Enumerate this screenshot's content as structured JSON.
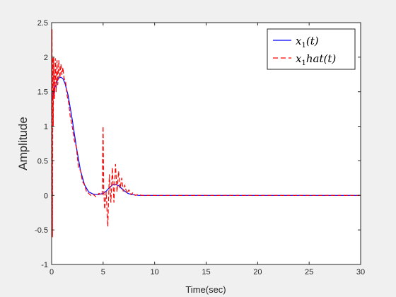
{
  "chart_data": {
    "type": "line",
    "title": "",
    "xlabel": "Time(sec)",
    "ylabel": "Amplitude",
    "xlim": [
      0,
      30
    ],
    "ylim": [
      -1,
      2.5
    ],
    "xticks": [
      0,
      5,
      10,
      15,
      20,
      25,
      30
    ],
    "yticks": [
      -1,
      -0.5,
      0,
      0.5,
      1,
      1.5,
      2,
      2.5
    ],
    "xtick_labels": [
      "0",
      "5",
      "10",
      "15",
      "20",
      "25",
      "30"
    ],
    "ytick_labels": [
      "-1",
      "-0.5",
      "0",
      "0.5",
      "1",
      "1.5",
      "2",
      "2.5"
    ],
    "grid": false,
    "legend_position": "top-right",
    "series": [
      {
        "name": "x_1(t)",
        "legend_base": "x",
        "legend_sub": "1",
        "legend_rest": "(t)",
        "color": "#0000ff",
        "style": "solid",
        "x": [
          0,
          0.15,
          0.3,
          0.5,
          0.7,
          0.9,
          1.1,
          1.3,
          1.6,
          2.0,
          2.4,
          2.8,
          3.2,
          3.6,
          4.0,
          4.5,
          5.0,
          5.3,
          5.6,
          5.9,
          6.2,
          6.5,
          6.8,
          7.1,
          7.4,
          7.8,
          8.5,
          10,
          15,
          20,
          25,
          30
        ],
        "y": [
          1.35,
          1.45,
          1.55,
          1.64,
          1.7,
          1.71,
          1.69,
          1.62,
          1.45,
          1.1,
          0.7,
          0.36,
          0.15,
          0.05,
          0.02,
          0.01,
          0.03,
          0.06,
          0.11,
          0.15,
          0.16,
          0.14,
          0.1,
          0.06,
          0.03,
          0.01,
          0.0,
          0.0,
          0.0,
          0.0,
          0.0,
          0.0
        ]
      },
      {
        "name": "x_1hat(t)",
        "legend_base": "x",
        "legend_sub": "1",
        "legend_rest": "hat(t)",
        "color": "#ff0000",
        "style": "dashed",
        "x": [
          0,
          0.04,
          0.08,
          0.12,
          0.16,
          0.2,
          0.28,
          0.36,
          0.44,
          0.52,
          0.6,
          0.7,
          0.8,
          0.9,
          1.0,
          1.1,
          1.2,
          1.35,
          1.5,
          1.65,
          1.8,
          2.0,
          2.2,
          2.4,
          2.6,
          2.8,
          3.0,
          3.2,
          3.4,
          3.6,
          3.8,
          4.0,
          4.3,
          4.6,
          4.9,
          5.0,
          5.05,
          5.15,
          5.3,
          5.45,
          5.6,
          5.75,
          5.9,
          6.05,
          6.2,
          6.35,
          6.5,
          6.65,
          6.8,
          6.95,
          7.1,
          7.3,
          7.5,
          7.7,
          7.9,
          8.1,
          8.4,
          8.8,
          9.5,
          10,
          12,
          15,
          18,
          20,
          22,
          25,
          28,
          30
        ],
        "y": [
          1.2,
          2.4,
          -0.6,
          2.0,
          1.0,
          2.0,
          1.4,
          1.98,
          1.5,
          1.95,
          1.6,
          1.95,
          1.7,
          1.9,
          1.75,
          1.85,
          1.7,
          1.65,
          1.45,
          1.35,
          1.15,
          1.0,
          0.8,
          0.7,
          0.4,
          0.36,
          0.2,
          0.15,
          0.05,
          0.03,
          0.0,
          0.02,
          -0.02,
          0.03,
          0.0,
          1.0,
          0.1,
          -0.2,
          0.05,
          -0.45,
          0.3,
          -0.1,
          0.4,
          -0.1,
          0.45,
          0.05,
          0.35,
          0.1,
          0.25,
          0.06,
          0.15,
          0.03,
          0.08,
          0.01,
          0.04,
          0.0,
          0.01,
          0.0,
          0.0,
          0.0,
          0.0,
          0.0,
          0.0,
          0.0,
          0.0,
          0.0,
          0.0,
          0.0
        ]
      }
    ]
  }
}
